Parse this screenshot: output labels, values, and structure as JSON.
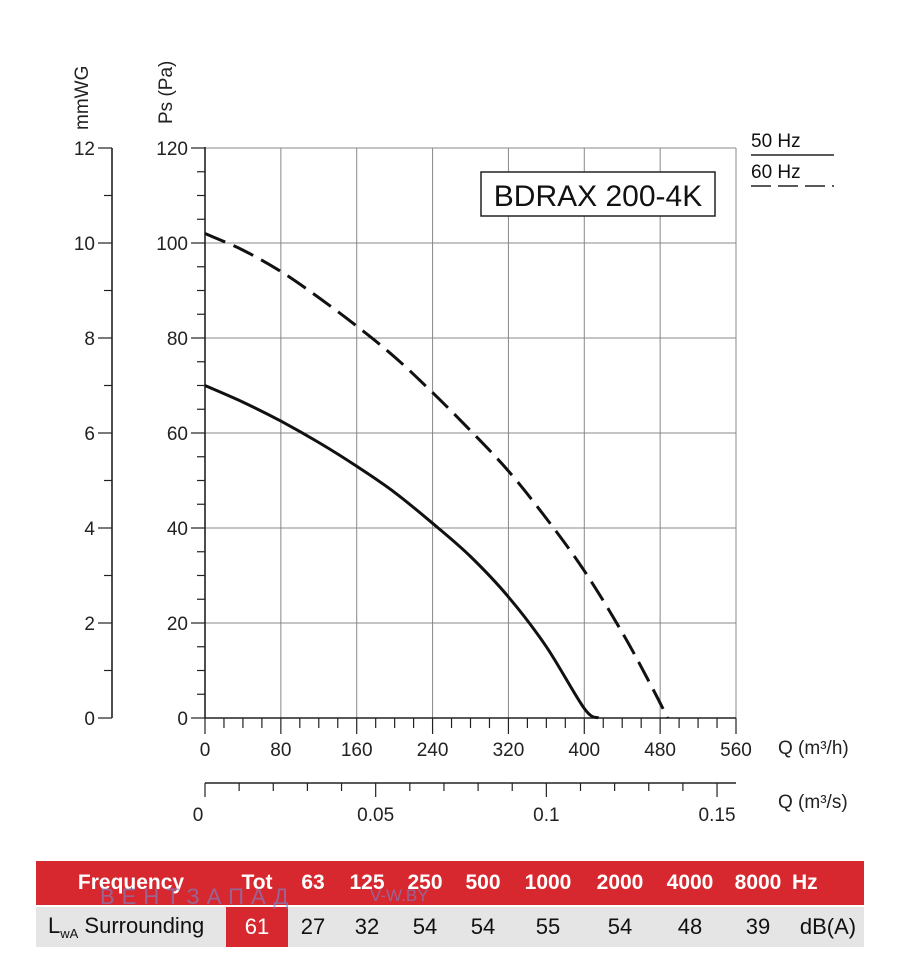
{
  "chart_data": {
    "type": "line",
    "title": "BDRAX 200-4K",
    "xlabel": "Q (m³/h)",
    "xlabel_secondary": "Q (m³/s)",
    "ylabel": "Ps (Pa)",
    "ylabel_secondary": "mmWG",
    "xlim": [
      0,
      560
    ],
    "ylim": [
      0,
      120
    ],
    "x_ticks": [
      "0",
      "80",
      "160",
      "240",
      "320",
      "400",
      "480",
      "560"
    ],
    "y_ticks": [
      "0",
      "20",
      "40",
      "60",
      "80",
      "100",
      "120"
    ],
    "x2_ticks": [
      "0",
      "0.05",
      "0.1",
      "0.15"
    ],
    "x2_tick_values": [
      0,
      0.05,
      0.1,
      0.15
    ],
    "y2_ticks": [
      "0",
      "2",
      "4",
      "6",
      "8",
      "10",
      "12"
    ],
    "grid": true,
    "series": [
      {
        "name": "50 Hz",
        "style": "solid",
        "x": [
          0,
          40,
          80,
          120,
          160,
          200,
          240,
          280,
          320,
          360,
          400,
          415
        ],
        "y": [
          70,
          66.5,
          62.5,
          58,
          53,
          47.5,
          41,
          34,
          25.5,
          15,
          2,
          0
        ]
      },
      {
        "name": "60 Hz",
        "style": "dashed",
        "x": [
          0,
          40,
          80,
          120,
          160,
          200,
          240,
          280,
          320,
          360,
          400,
          440,
          470,
          488
        ],
        "y": [
          102,
          98.5,
          94,
          88.5,
          82.5,
          76,
          68.5,
          60.5,
          52,
          42,
          31,
          18,
          7,
          0
        ]
      }
    ]
  },
  "legend": {
    "items": [
      "50 Hz",
      "60 Hz"
    ]
  },
  "table": {
    "header": [
      "Frequency",
      "Tot",
      "63",
      "125",
      "250",
      "500",
      "1000",
      "2000",
      "4000",
      "8000",
      "Hz"
    ],
    "row_label_main": "L",
    "row_label_sub": "wA",
    "row_label_rest": " Surrounding",
    "values": [
      "61",
      "27",
      "32",
      "54",
      "54",
      "55",
      "54",
      "48",
      "39",
      "dB(A)"
    ]
  },
  "watermark": {
    "text": "ВЕНТЗАПАД",
    "site": "V-W.BY"
  }
}
